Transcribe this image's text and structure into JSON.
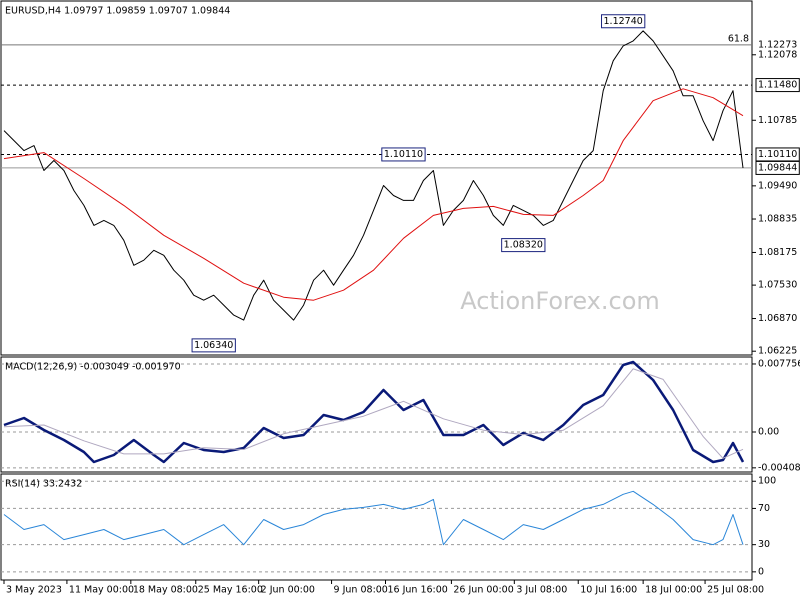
{
  "chart_data": [
    {
      "type": "line",
      "title": "EURUSD,H4  1.09797 1.09859 1.09707 1.09844",
      "watermark": "ActionForex.com",
      "xlim": [
        -0.3,
        74.9
      ],
      "ylim": [
        1.0615,
        1.1314
      ],
      "yticks": [
        {
          "value": 1.12078,
          "label": "1.12078"
        },
        {
          "value": 1.10785,
          "label": "1.10785"
        },
        {
          "value": 1.0949,
          "label": "1.09490"
        },
        {
          "value": 1.08835,
          "label": "1.08835"
        },
        {
          "value": 1.08175,
          "label": "1.08175"
        },
        {
          "value": 1.0753,
          "label": "1.07530"
        },
        {
          "value": 1.0687,
          "label": "1.06870"
        },
        {
          "value": 1.06225,
          "label": "1.06225"
        }
      ],
      "fib": {
        "level": "61.8",
        "price": {
          "value": 1.12273,
          "label": "1.12273"
        }
      },
      "levels": [
        {
          "value": 1.1148,
          "label": "1.11480",
          "style": "dashed"
        },
        {
          "value": 1.1011,
          "label": "1.10110",
          "style": "dashed"
        },
        {
          "value": 1.09844,
          "label": "1.09844",
          "style": "solid"
        }
      ],
      "annotations": [
        {
          "x": 62,
          "value": 1.1274,
          "label": "1.12740"
        },
        {
          "x": 40,
          "value": 1.1011,
          "label": "1.10110"
        },
        {
          "x": 52,
          "value": 1.0832,
          "label": "1.08320"
        },
        {
          "x": 21,
          "value": 1.0634,
          "label": "1.06340"
        }
      ],
      "series": [
        {
          "color": "#000000",
          "x": [
            0,
            1,
            2,
            3,
            4,
            5,
            6,
            7,
            8,
            9,
            10,
            11,
            12,
            13,
            14,
            15,
            16,
            17,
            18,
            19,
            20,
            21,
            22,
            23,
            24,
            25,
            26,
            27,
            28,
            29,
            30,
            31,
            32,
            33,
            34,
            35,
            36,
            37,
            38,
            39,
            40,
            41,
            42,
            43,
            44,
            45,
            46,
            47,
            48,
            49,
            50,
            51,
            52,
            53,
            54,
            55,
            56,
            57,
            58,
            59,
            60,
            61,
            62,
            63,
            64,
            65,
            66,
            67,
            68,
            69,
            70,
            71,
            72,
            73,
            74
          ],
          "values": [
            1.1058,
            1.10383,
            1.10186,
            1.10285,
            1.09793,
            1.0999,
            1.09793,
            1.09399,
            1.09104,
            1.0871,
            1.08808,
            1.0871,
            1.08414,
            1.07922,
            1.08021,
            1.08217,
            1.08119,
            1.07824,
            1.07627,
            1.07331,
            1.07233,
            1.07331,
            1.07135,
            1.06938,
            1.06839,
            1.07331,
            1.07627,
            1.07233,
            1.07036,
            1.06839,
            1.07135,
            1.07627,
            1.07824,
            1.07528,
            1.07824,
            1.08119,
            1.08513,
            1.09005,
            1.09497,
            1.093,
            1.09202,
            1.09202,
            1.09596,
            1.09793,
            1.0871,
            1.09005,
            1.09202,
            1.09596,
            1.093,
            1.08907,
            1.0871,
            1.09104,
            1.09005,
            1.08907,
            1.0871,
            1.08808,
            1.09202,
            1.09596,
            1.0999,
            1.10186,
            1.11368,
            1.11959,
            1.12254,
            1.12352,
            1.12549,
            1.12352,
            1.12057,
            1.11762,
            1.11269,
            1.11269,
            1.10777,
            1.10383,
            1.10974,
            1.11368,
            1.09844
          ]
        },
        {
          "color": "#e01010",
          "x": [
            0,
            4,
            8,
            12,
            16,
            20,
            24,
            28,
            31,
            34,
            37,
            40,
            43,
            46,
            49,
            52,
            55,
            58,
            60,
            62,
            65,
            68,
            71,
            74
          ],
          "values": [
            1.10029,
            1.10147,
            1.09635,
            1.09104,
            1.08513,
            1.0806,
            1.07568,
            1.07292,
            1.07233,
            1.0743,
            1.07824,
            1.08454,
            1.08907,
            1.09044,
            1.09084,
            1.08926,
            1.08907,
            1.093,
            1.09596,
            1.10383,
            1.11171,
            1.11407,
            1.1123,
            1.10876
          ]
        }
      ]
    },
    {
      "type": "line",
      "title": "MACD(12,26,9) -0.003049 -0.001970",
      "xlim": [
        -0.3,
        74.9
      ],
      "ylim": [
        -0.00456,
        0.00855
      ],
      "grid": "dashed",
      "yticks": [
        {
          "value": 0.007756,
          "label": "0.007756"
        },
        {
          "value": 0,
          "label": "0.00"
        },
        {
          "value": -0.004086,
          "label": "-0.004086"
        }
      ],
      "series": [
        {
          "color": "#0a1a78",
          "x": [
            0,
            2,
            4,
            6,
            8,
            9,
            11,
            13,
            15,
            16,
            18,
            20,
            22,
            24,
            26,
            28,
            30,
            32,
            34,
            36,
            38,
            40,
            42,
            44,
            46,
            48,
            50,
            52,
            54,
            56,
            58,
            60,
            62,
            63,
            65,
            67,
            69,
            71,
            72,
            73,
            74
          ],
          "values": [
            0.000798,
            0.001596,
            0.000228,
            -0.000912,
            -0.00228,
            -0.00342,
            -0.002622,
            -0.000912,
            -0.002622,
            -0.00342,
            -0.001254,
            -0.002052,
            -0.00228,
            -0.001824,
            0.000456,
            -0.000684,
            -0.000342,
            0.001938,
            0.001368,
            0.00228,
            0.004788,
            0.002508,
            0.003648,
            -0.000342,
            -0.000342,
            0.000798,
            -0.001482,
            -0.000114,
            -0.000912,
            0.000798,
            0.003078,
            0.004218,
            0.007638,
            0.00798,
            0.005928,
            0.002508,
            -0.002052,
            -0.00342,
            -0.003192,
            -0.001254,
            -0.00342
          ]
        },
        {
          "color": "#b0a8c0",
          "x": [
            0,
            4,
            8,
            12,
            16,
            20,
            24,
            28,
            32,
            36,
            40,
            44,
            48,
            52,
            56,
            60,
            63,
            66,
            70,
            72,
            74
          ],
          "values": [
            0.0006,
            0.0008,
            -0.001,
            -0.0025,
            -0.0025,
            -0.0018,
            -0.002,
            -0.0002,
            0.0008,
            0.0018,
            0.0035,
            0.0015,
            0.0002,
            -0.0003,
            0.0002,
            0.003,
            0.0072,
            0.006,
            -0.0005,
            -0.003,
            -0.00197
          ]
        }
      ]
    },
    {
      "type": "line",
      "title": "RSI(14) 33.2432",
      "xlim": [
        -0.3,
        74.9
      ],
      "ylim": [
        -9,
        108
      ],
      "grid": "dashed",
      "yticks": [
        0,
        30,
        70,
        100
      ],
      "xticks": [
        {
          "value": 0,
          "label": "3 May 2023"
        },
        {
          "value": 6.3,
          "label": "11 May 00:00"
        },
        {
          "value": 12.7,
          "label": "18 May 08:00"
        },
        {
          "value": 19.2,
          "label": "25 May 16:00"
        },
        {
          "value": 25.5,
          "label": "2 Jun 00:00"
        },
        {
          "value": 32.8,
          "label": "9 Jun 08:00"
        },
        {
          "value": 38.2,
          "label": "16 Jun 16:00"
        },
        {
          "value": 44.8,
          "label": "26 Jun 00:00"
        },
        {
          "value": 51.1,
          "label": "3 Jul 08:00"
        },
        {
          "value": 57.5,
          "label": "10 Jul 16:00"
        },
        {
          "value": 64,
          "label": "18 Jul 00:00"
        },
        {
          "value": 70.2,
          "label": "25 Jul 08:00"
        }
      ],
      "series": [
        {
          "color": "#2a86d8",
          "x": [
            0,
            2,
            4,
            6,
            8,
            10,
            12,
            14,
            16,
            18,
            20,
            22,
            24,
            26,
            28,
            30,
            32,
            34,
            36,
            38,
            40,
            42,
            43,
            44,
            46,
            48,
            50,
            52,
            54,
            56,
            58,
            60,
            62,
            63,
            65,
            67,
            69,
            71,
            72,
            73,
            74
          ],
          "values": [
            63.3,
            46.7,
            52.2,
            35.6,
            41.1,
            46.7,
            35.6,
            41.1,
            46.7,
            30,
            41.1,
            52.2,
            30,
            57.8,
            46.7,
            52.2,
            63.3,
            68.9,
            71.1,
            74.4,
            68.9,
            74.4,
            80,
            30,
            57.8,
            46.7,
            35.6,
            52.2,
            46.7,
            57.8,
            68.9,
            74.4,
            85.6,
            88.9,
            74.4,
            57.8,
            35.6,
            30,
            35.6,
            63.3,
            30
          ]
        }
      ]
    }
  ]
}
